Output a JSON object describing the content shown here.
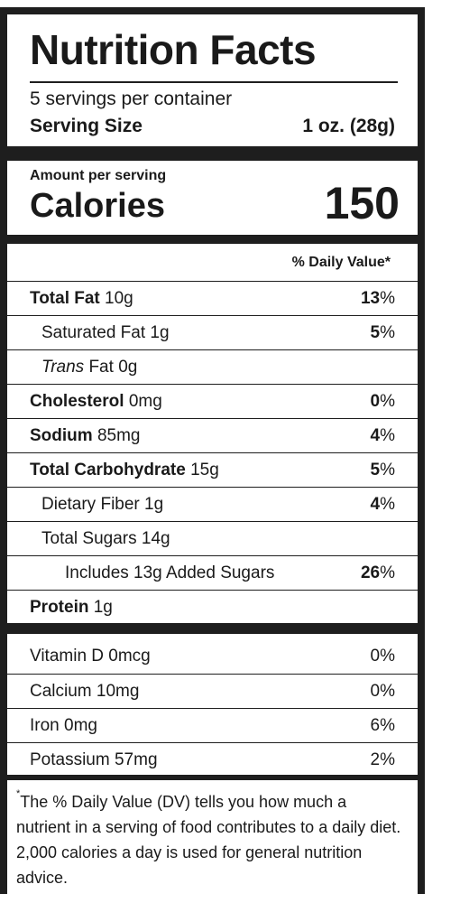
{
  "header": {
    "title": "Nutrition Facts",
    "servings": "5 servings per container",
    "serving_size_label": "Serving Size",
    "serving_size_value": "1 oz. (28g)"
  },
  "calories": {
    "amount_label": "Amount per serving",
    "label": "Calories",
    "value": "150"
  },
  "daily_value_header": "% Daily Value*",
  "nutrients": [
    {
      "name": "Total Fat",
      "amount": "10g",
      "dv": "13",
      "bold": true,
      "indent": 0
    },
    {
      "name": "Saturated Fat",
      "amount": "1g",
      "dv": "5",
      "bold": false,
      "indent": 1
    },
    {
      "name": "Trans",
      "name_rest": "Fat",
      "amount": "0g",
      "dv": "",
      "bold": false,
      "indent": 1
    },
    {
      "name": "Cholesterol",
      "amount": "0mg",
      "dv": "0",
      "bold": true,
      "indent": 0
    },
    {
      "name": "Sodium",
      "amount": "85mg",
      "dv": "4",
      "bold": true,
      "indent": 0
    },
    {
      "name": "Total Carbohydrate",
      "amount": "15g",
      "dv": "5",
      "bold": true,
      "indent": 0
    },
    {
      "name": "Dietary Fiber",
      "amount": "1g",
      "dv": "4",
      "bold": false,
      "indent": 1
    },
    {
      "name": "Total Sugars",
      "amount": "14g",
      "dv": "",
      "bold": false,
      "indent": 1
    },
    {
      "name": "Includes 13g Added Sugars",
      "amount": "",
      "dv": "26",
      "bold": false,
      "indent": 2
    },
    {
      "name": "Protein",
      "amount": "1g",
      "dv": "",
      "bold": true,
      "indent": 0
    }
  ],
  "vitamins": [
    {
      "name": "Vitamin D 0mcg",
      "dv": "0%"
    },
    {
      "name": "Calcium 10mg",
      "dv": "0%"
    },
    {
      "name": "Iron 0mg",
      "dv": "6%"
    },
    {
      "name": "Potassium 57mg",
      "dv": "2%"
    }
  ],
  "percent_sign": "%",
  "footnote": {
    "marker": "*",
    "text": "The % Daily Value (DV) tells you how much a nutrient in a serving of food contributes to a daily diet. 2,000 calories a day is used for general nutrition advice."
  }
}
